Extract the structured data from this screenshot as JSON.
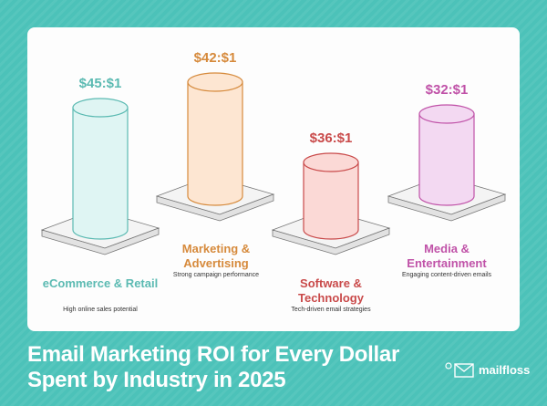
{
  "chart_data": {
    "type": "bar",
    "style": "3d-cylinders",
    "title": "Email Marketing ROI for Every Dollar Spent by Industry in 2025",
    "categories": [
      "eCommerce & Retail",
      "Marketing & Advertising",
      "Software & Technology",
      "Media & Entertainment"
    ],
    "values": [
      45,
      42,
      36,
      32
    ],
    "data_labels": [
      "$45:$1",
      "$42:$1",
      "$36:$1",
      "$32:$1"
    ],
    "descriptions": [
      "High online sales potential",
      "Strong campaign performance",
      "Tech-driven email strategies",
      "Engaging content-driven emails"
    ],
    "colors": [
      "#5bbab2",
      "#d68a3c",
      "#c94a4a",
      "#c052a8"
    ],
    "fills": [
      "#dff5f3",
      "#fde6d2",
      "#fbd9d6",
      "#f3d9f2"
    ]
  },
  "title_line1": "Email Marketing ROI for Every Dollar",
  "title_line2": "Spent by Industry in 2025",
  "brand": "mailfloss"
}
